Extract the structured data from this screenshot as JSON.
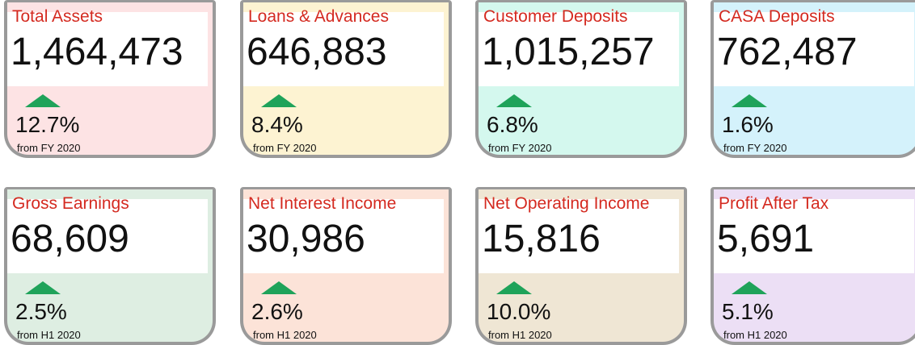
{
  "cards": [
    {
      "title": "Total Assets",
      "value": "1,464,473",
      "change": "12.7%",
      "period": "from FY 2020"
    },
    {
      "title": "Loans & Advances",
      "value": "646,883",
      "change": "8.4%",
      "period": "from FY 2020"
    },
    {
      "title": "Customer Deposits",
      "value": "1,015,257",
      "change": "6.8%",
      "period": "from FY 2020"
    },
    {
      "title": "CASA Deposits",
      "value": "762,487",
      "change": "1.6%",
      "period": "from FY 2020"
    },
    {
      "title": "Gross Earnings",
      "value": "68,609",
      "change": "2.5%",
      "period": "from H1 2020"
    },
    {
      "title": "Net Interest Income",
      "value": "30,986",
      "change": "2.6%",
      "period": "from H1 2020"
    },
    {
      "title": "Net Operating Income",
      "value": "15,816",
      "change": "10.0%",
      "period": "from H1 2020"
    },
    {
      "title": " Profit After Tax",
      "value": "5,691",
      "change": "5.1%",
      "period": "from H1 2020"
    }
  ]
}
